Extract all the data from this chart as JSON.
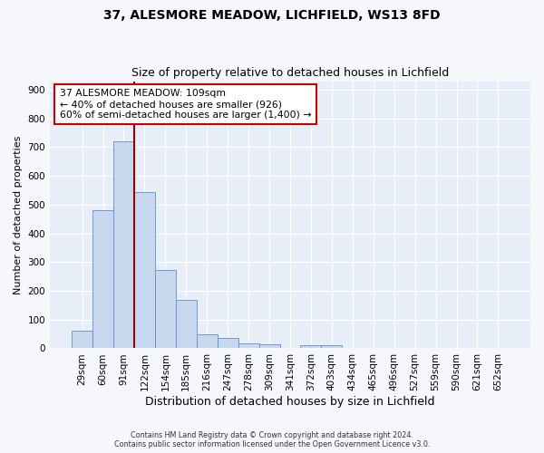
{
  "title1": "37, ALESMORE MEADOW, LICHFIELD, WS13 8FD",
  "title2": "Size of property relative to detached houses in Lichfield",
  "xlabel": "Distribution of detached houses by size in Lichfield",
  "ylabel": "Number of detached properties",
  "bins": [
    "29sqm",
    "60sqm",
    "91sqm",
    "122sqm",
    "154sqm",
    "185sqm",
    "216sqm",
    "247sqm",
    "278sqm",
    "309sqm",
    "341sqm",
    "372sqm",
    "403sqm",
    "434sqm",
    "465sqm",
    "496sqm",
    "527sqm",
    "559sqm",
    "590sqm",
    "621sqm",
    "652sqm"
  ],
  "values": [
    60,
    480,
    720,
    543,
    272,
    170,
    48,
    35,
    17,
    15,
    0,
    10,
    10,
    0,
    0,
    0,
    0,
    0,
    0,
    0,
    0
  ],
  "bar_color": "#c8d8ee",
  "bar_edge_color": "#5b8fcc",
  "vline_color": "#990000",
  "annotation_text": "37 ALESMORE MEADOW: 109sqm\n← 40% of detached houses are smaller (926)\n60% of semi-detached houses are larger (1,400) →",
  "annotation_box_color": "#ffffff",
  "annotation_box_edge": "#cc0000",
  "ylim": [
    0,
    930
  ],
  "yticks": [
    0,
    100,
    200,
    300,
    400,
    500,
    600,
    700,
    800,
    900
  ],
  "footer": "Contains HM Land Registry data © Crown copyright and database right 2024.\nContains public sector information licensed under the Open Government Licence v3.0.",
  "bg_color": "#f5f7fb",
  "plot_bg_color": "#e8eef8"
}
